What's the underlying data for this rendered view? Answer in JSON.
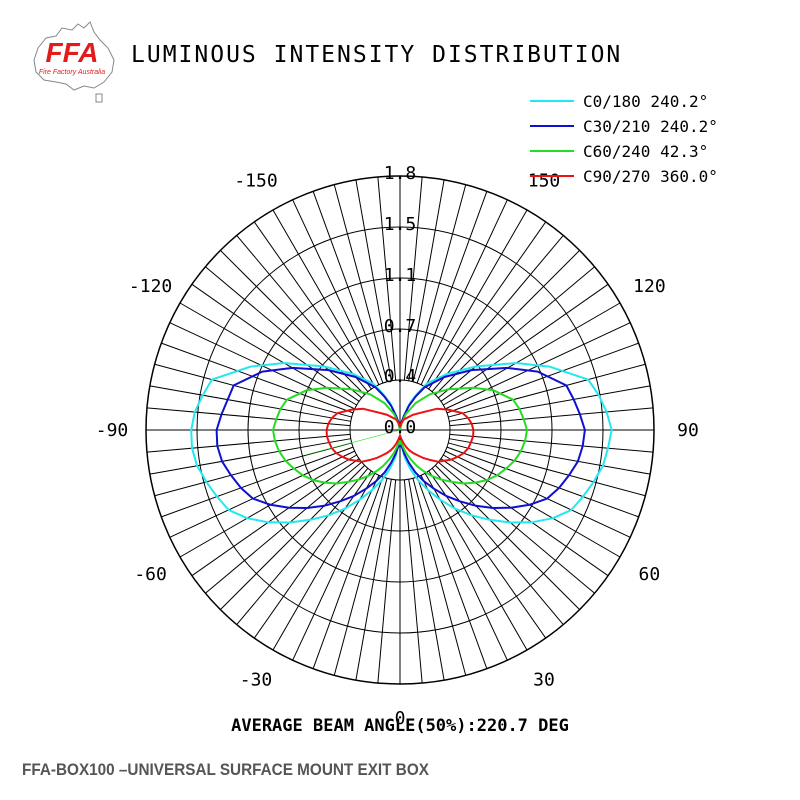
{
  "header": {
    "title": "LUMINOUS INTENSITY DISTRIBUTION",
    "logo_text": "FFA",
    "logo_subtext": "Fire Factory Australia"
  },
  "footer": {
    "product": "FFA-BOX100 –UNIVERSAL SURFACE MOUNT EXIT BOX"
  },
  "chart_data": {
    "type": "polar",
    "title": "LUMINOUS INTENSITY DISTRIBUTION",
    "radial_ticks": [
      "0.0",
      "0.4",
      "0.7",
      "1.1",
      "1.5",
      "1.8"
    ],
    "rmax": 1.8,
    "angle_labels": [
      {
        "angle": 0,
        "text": "0"
      },
      {
        "angle": 30,
        "text": "30"
      },
      {
        "angle": -30,
        "text": "-30"
      },
      {
        "angle": 60,
        "text": "60"
      },
      {
        "angle": -60,
        "text": "-60"
      },
      {
        "angle": 90,
        "text": "90"
      },
      {
        "angle": -90,
        "text": "-90"
      },
      {
        "angle": 120,
        "text": "120"
      },
      {
        "angle": -120,
        "text": "-120"
      },
      {
        "angle": 150,
        "text": "150"
      },
      {
        "angle": -150,
        "text": "-150"
      }
    ],
    "legend_position": "top-right",
    "series": [
      {
        "name": "C0/180 240.2°",
        "color": "#22e8f0",
        "points": [
          [
            -180,
            0
          ],
          [
            -172,
            0.02
          ],
          [
            -168,
            0.06
          ],
          [
            -165,
            0.1
          ],
          [
            -160,
            0.2
          ],
          [
            -155,
            0.28
          ],
          [
            -150,
            0.38
          ],
          [
            -140,
            0.52
          ],
          [
            -130,
            0.7
          ],
          [
            -120,
            0.95
          ],
          [
            -113,
            1.15
          ],
          [
            -105,
            1.38
          ],
          [
            -100,
            1.42
          ],
          [
            -95,
            1.46
          ],
          [
            -90,
            1.48
          ],
          [
            -85,
            1.48
          ],
          [
            -80,
            1.46
          ],
          [
            -75,
            1.42
          ],
          [
            -70,
            1.38
          ],
          [
            -65,
            1.34
          ],
          [
            -60,
            1.25
          ],
          [
            -55,
            1.14
          ],
          [
            -50,
            1.02
          ],
          [
            -45,
            0.9
          ],
          [
            -40,
            0.79
          ],
          [
            -35,
            0.68
          ],
          [
            -30,
            0.57
          ],
          [
            -25,
            0.47
          ],
          [
            -20,
            0.38
          ],
          [
            -15,
            0.29
          ],
          [
            -10,
            0.2
          ],
          [
            -5,
            0.11
          ],
          [
            0,
            0.08
          ],
          [
            5,
            0.11
          ],
          [
            10,
            0.2
          ],
          [
            15,
            0.29
          ],
          [
            20,
            0.38
          ],
          [
            25,
            0.47
          ],
          [
            30,
            0.57
          ],
          [
            35,
            0.68
          ],
          [
            40,
            0.79
          ],
          [
            45,
            0.9
          ],
          [
            50,
            1.02
          ],
          [
            55,
            1.14
          ],
          [
            60,
            1.25
          ],
          [
            65,
            1.34
          ],
          [
            70,
            1.38
          ],
          [
            75,
            1.42
          ],
          [
            80,
            1.46
          ],
          [
            85,
            1.48
          ],
          [
            90,
            1.5
          ],
          [
            95,
            1.47
          ],
          [
            100,
            1.43
          ],
          [
            105,
            1.38
          ],
          [
            113,
            1.15
          ],
          [
            120,
            0.95
          ],
          [
            130,
            0.7
          ],
          [
            140,
            0.52
          ],
          [
            150,
            0.38
          ],
          [
            155,
            0.28
          ],
          [
            160,
            0.2
          ],
          [
            165,
            0.1
          ],
          [
            168,
            0.06
          ],
          [
            172,
            0.02
          ],
          [
            180,
            0
          ]
        ]
      },
      {
        "name": "C30/210 240.2°",
        "color": "#1010d0",
        "points": [
          [
            -180,
            0
          ],
          [
            -172,
            0.02
          ],
          [
            -168,
            0.06
          ],
          [
            -165,
            0.1
          ],
          [
            -160,
            0.18
          ],
          [
            -155,
            0.26
          ],
          [
            -150,
            0.35
          ],
          [
            -140,
            0.49
          ],
          [
            -130,
            0.66
          ],
          [
            -120,
            0.88
          ],
          [
            -113,
            1.06
          ],
          [
            -105,
            1.22
          ],
          [
            -100,
            1.24
          ],
          [
            -95,
            1.27
          ],
          [
            -90,
            1.3
          ],
          [
            -85,
            1.3
          ],
          [
            -80,
            1.28
          ],
          [
            -75,
            1.24
          ],
          [
            -70,
            1.2
          ],
          [
            -65,
            1.15
          ],
          [
            -60,
            1.06
          ],
          [
            -55,
            0.96
          ],
          [
            -50,
            0.86
          ],
          [
            -45,
            0.76
          ],
          [
            -40,
            0.66
          ],
          [
            -35,
            0.57
          ],
          [
            -30,
            0.48
          ],
          [
            -25,
            0.4
          ],
          [
            -20,
            0.32
          ],
          [
            -15,
            0.24
          ],
          [
            -10,
            0.17
          ],
          [
            -5,
            0.1
          ],
          [
            0,
            0.12
          ],
          [
            5,
            0.1
          ],
          [
            10,
            0.17
          ],
          [
            15,
            0.24
          ],
          [
            20,
            0.32
          ],
          [
            25,
            0.4
          ],
          [
            30,
            0.48
          ],
          [
            35,
            0.57
          ],
          [
            40,
            0.66
          ],
          [
            45,
            0.76
          ],
          [
            50,
            0.86
          ],
          [
            55,
            0.96
          ],
          [
            60,
            1.06
          ],
          [
            65,
            1.15
          ],
          [
            70,
            1.2
          ],
          [
            75,
            1.24
          ],
          [
            80,
            1.28
          ],
          [
            85,
            1.3
          ],
          [
            90,
            1.31
          ],
          [
            95,
            1.28
          ],
          [
            100,
            1.25
          ],
          [
            105,
            1.22
          ],
          [
            113,
            1.06
          ],
          [
            120,
            0.88
          ],
          [
            130,
            0.66
          ],
          [
            140,
            0.49
          ],
          [
            150,
            0.35
          ],
          [
            155,
            0.26
          ],
          [
            160,
            0.18
          ],
          [
            165,
            0.1
          ],
          [
            168,
            0.06
          ],
          [
            172,
            0.02
          ],
          [
            180,
            0
          ]
        ]
      },
      {
        "name": "C60/240 42.3°",
        "color": "#22dd22",
        "points": [
          [
            -180,
            0
          ],
          [
            -170,
            0.02
          ],
          [
            -165,
            0.05
          ],
          [
            -160,
            0.12
          ],
          [
            -150,
            0.22
          ],
          [
            -140,
            0.33
          ],
          [
            -130,
            0.45
          ],
          [
            -120,
            0.6
          ],
          [
            -113,
            0.72
          ],
          [
            -105,
            0.83
          ],
          [
            -100,
            0.86
          ],
          [
            -95,
            0.88
          ],
          [
            -90,
            0.9
          ],
          [
            -85,
            0.89
          ],
          [
            -80,
            0.87
          ],
          [
            -75,
            0.84
          ],
          [
            -70,
            0.8
          ],
          [
            -65,
            0.76
          ],
          [
            -60,
            0.71
          ],
          [
            -55,
            0.65
          ],
          [
            -50,
            0.59
          ],
          [
            -45,
            0.52
          ],
          [
            -40,
            0.46
          ],
          [
            -35,
            0.4
          ],
          [
            -30,
            0.34
          ],
          [
            -25,
            0.28
          ],
          [
            -20,
            0.22
          ],
          [
            -15,
            0.17
          ],
          [
            -10,
            0.12
          ],
          [
            -5,
            0.08
          ],
          [
            0,
            0.1
          ],
          [
            5,
            0.08
          ],
          [
            10,
            0.12
          ],
          [
            15,
            0.17
          ],
          [
            20,
            0.22
          ],
          [
            25,
            0.28
          ],
          [
            30,
            0.34
          ],
          [
            35,
            0.4
          ],
          [
            40,
            0.46
          ],
          [
            45,
            0.52
          ],
          [
            50,
            0.59
          ],
          [
            55,
            0.65
          ],
          [
            60,
            0.71
          ],
          [
            65,
            0.76
          ],
          [
            70,
            0.8
          ],
          [
            75,
            0.84
          ],
          [
            80,
            0.87
          ],
          [
            85,
            0.89
          ],
          [
            90,
            0.9
          ],
          [
            95,
            0.88
          ],
          [
            100,
            0.86
          ],
          [
            105,
            0.83
          ],
          [
            113,
            0.72
          ],
          [
            120,
            0.6
          ],
          [
            130,
            0.45
          ],
          [
            140,
            0.33
          ],
          [
            150,
            0.22
          ],
          [
            160,
            0.12
          ],
          [
            165,
            0.05
          ],
          [
            170,
            0.02
          ],
          [
            180,
            0
          ]
        ]
      },
      {
        "name": "C90/270 360.0°",
        "color": "#ee1111",
        "points": [
          [
            -180,
            0.02
          ],
          [
            -170,
            0.05
          ],
          [
            -160,
            0.08
          ],
          [
            -150,
            0.1
          ],
          [
            -140,
            0.14
          ],
          [
            -130,
            0.19
          ],
          [
            -120,
            0.3
          ],
          [
            -113,
            0.37
          ],
          [
            -105,
            0.46
          ],
          [
            -100,
            0.49
          ],
          [
            -95,
            0.51
          ],
          [
            -90,
            0.52
          ],
          [
            -85,
            0.52
          ],
          [
            -80,
            0.51
          ],
          [
            -75,
            0.5
          ],
          [
            -70,
            0.48
          ],
          [
            -65,
            0.45
          ],
          [
            -60,
            0.42
          ],
          [
            -55,
            0.38
          ],
          [
            -50,
            0.35
          ],
          [
            -45,
            0.3
          ],
          [
            -40,
            0.26
          ],
          [
            -35,
            0.22
          ],
          [
            -30,
            0.19
          ],
          [
            -25,
            0.16
          ],
          [
            -20,
            0.13
          ],
          [
            -15,
            0.1
          ],
          [
            -10,
            0.07
          ],
          [
            -5,
            0.05
          ],
          [
            0,
            0.04
          ],
          [
            5,
            0.05
          ],
          [
            10,
            0.07
          ],
          [
            15,
            0.1
          ],
          [
            20,
            0.13
          ],
          [
            25,
            0.16
          ],
          [
            30,
            0.19
          ],
          [
            35,
            0.22
          ],
          [
            40,
            0.26
          ],
          [
            45,
            0.3
          ],
          [
            50,
            0.35
          ],
          [
            55,
            0.38
          ],
          [
            60,
            0.42
          ],
          [
            65,
            0.45
          ],
          [
            70,
            0.48
          ],
          [
            75,
            0.5
          ],
          [
            80,
            0.51
          ],
          [
            85,
            0.52
          ],
          [
            90,
            0.52
          ],
          [
            95,
            0.51
          ],
          [
            100,
            0.49
          ],
          [
            105,
            0.46
          ],
          [
            113,
            0.37
          ],
          [
            120,
            0.3
          ],
          [
            130,
            0.19
          ],
          [
            140,
            0.14
          ],
          [
            150,
            0.1
          ],
          [
            160,
            0.08
          ],
          [
            170,
            0.05
          ],
          [
            180,
            0.02
          ]
        ]
      }
    ],
    "beam_angle_text": "AVERAGE BEAM ANGLE(50%):220.7 DEG"
  }
}
